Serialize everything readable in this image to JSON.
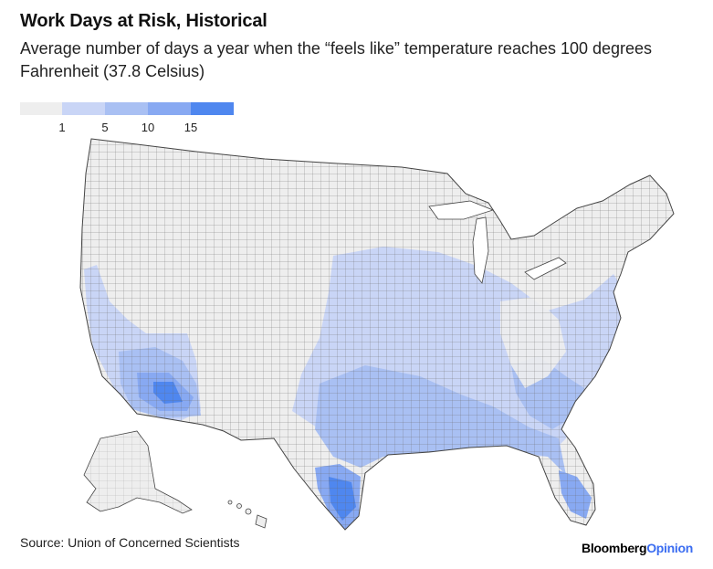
{
  "title": "Work Days at Risk, Historical",
  "subtitle": "Average number of days a year when the “feels like” temperature reaches 100 degrees Fahrenheit (37.8 Celsius)",
  "legend": {
    "bins": [
      {
        "label": "",
        "color": "#eeeeee"
      },
      {
        "label": "1",
        "color": "#c9d5f6"
      },
      {
        "label": "5",
        "color": "#a9c0f3"
      },
      {
        "label": "10",
        "color": "#88a9f2"
      },
      {
        "label": "15",
        "color": "#4f87ef"
      }
    ]
  },
  "source": "Source: Union of Concerned Scientists",
  "brand": {
    "part1": "Bloomberg",
    "part2": "Opinion"
  },
  "map": {
    "regions": [
      "Contiguous United States",
      "Alaska",
      "Hawaii"
    ],
    "border_color": "#555555"
  }
}
